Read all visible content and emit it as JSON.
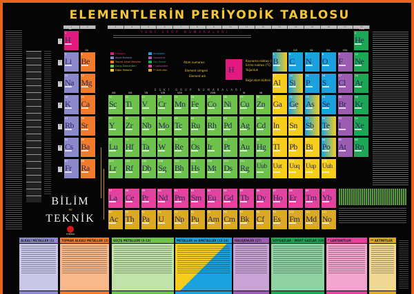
{
  "title": "ELEMENTLERİN PERİYODİK TABLOSU",
  "new_group_header": "YENİ GRUP NUMARALARI",
  "old_group_header": "ESKİ GRUP NUMARALARI",
  "new_groups": [
    "1",
    "2",
    "3",
    "4",
    "5",
    "6",
    "7",
    "8",
    "9",
    "10",
    "11",
    "12",
    "13",
    "14",
    "15",
    "16",
    "17",
    "18"
  ],
  "old_groups": {
    "g1": "IA",
    "g2": "IIA",
    "g13": "IIIA",
    "g14": "IVA",
    "g15": "VA",
    "g16": "VIA",
    "g17": "VIIA",
    "g18": "VIIIA",
    "transition": [
      "IIIB",
      "IVB",
      "VB",
      "VIB",
      "VIIB",
      "VIIIB",
      "IB",
      "IIB"
    ]
  },
  "periods": [
    "1",
    "2",
    "3",
    "4",
    "5",
    "6",
    "7"
  ],
  "colors": {
    "hydrogen": "#e2197e",
    "alkali": "#8c88cc",
    "alkaline": "#f27b2b",
    "transition": "#6dc24b",
    "other": "#f7cd1b",
    "nonmetal": "#1aa2de",
    "metalloid": "linear-gradient(90deg,#1aa2de,#f7cd1b)",
    "halogen": "#9c5cb2",
    "noble": "#1ba753",
    "lanthanide": "#e2439f",
    "actinide": "#dba923",
    "accent": "#f3c63a",
    "border": "#e8641c"
  },
  "legend": [
    {
      "label": "Hidrojen",
      "cat": "hydrogen"
    },
    {
      "label": "Alkali Metaller",
      "cat": "alkali"
    },
    {
      "label": "Toprak Alkali Metaller",
      "cat": "alkaline"
    },
    {
      "label": "Geçiş Elementleri",
      "cat": "transition"
    },
    {
      "label": "Diğer Metaller",
      "cat": "other"
    },
    {
      "label": "Ametaller",
      "cat": "nonmetal"
    },
    {
      "label": "Halojenler",
      "cat": "halogen"
    },
    {
      "label": "Soy Gazlar",
      "cat": "noble"
    },
    {
      "label": "* Lantanitler",
      "cat": "lanthanide"
    },
    {
      "label": "** Aktinitler",
      "cat": "actinide"
    }
  ],
  "key": {
    "symbol": "H",
    "atomic_number": "Atom numarası",
    "element_symbol": "Element simgesi",
    "element_name": "Element adı",
    "boiling": "Kaynama noktası (°C)",
    "melting": "Erime noktası (°C)",
    "density": "Yoğunluk",
    "mass": "Bağıl atom kütlesi"
  },
  "elements": [
    [
      1,
      "H",
      1,
      1,
      "hydrogen"
    ],
    [
      2,
      "He",
      18,
      1,
      "noble"
    ],
    [
      3,
      "Li",
      1,
      2,
      "alkali"
    ],
    [
      4,
      "Be",
      2,
      2,
      "alkaline"
    ],
    [
      5,
      "B",
      13,
      2,
      "metalloid"
    ],
    [
      6,
      "C",
      14,
      2,
      "nonmetal"
    ],
    [
      7,
      "N",
      15,
      2,
      "nonmetal"
    ],
    [
      8,
      "O",
      16,
      2,
      "nonmetal"
    ],
    [
      9,
      "F",
      17,
      2,
      "halogen"
    ],
    [
      10,
      "Ne",
      18,
      2,
      "noble"
    ],
    [
      11,
      "Na",
      1,
      3,
      "alkali"
    ],
    [
      12,
      "Mg",
      2,
      3,
      "alkaline"
    ],
    [
      13,
      "Al",
      13,
      3,
      "other"
    ],
    [
      14,
      "Si",
      14,
      3,
      "metalloid"
    ],
    [
      15,
      "P",
      15,
      3,
      "nonmetal"
    ],
    [
      16,
      "S",
      16,
      3,
      "nonmetal"
    ],
    [
      17,
      "Cl",
      17,
      3,
      "halogen"
    ],
    [
      18,
      "Ar",
      18,
      3,
      "noble"
    ],
    [
      19,
      "K",
      1,
      4,
      "alkali"
    ],
    [
      20,
      "Ca",
      2,
      4,
      "alkaline"
    ],
    [
      21,
      "Sc",
      3,
      4,
      "transition"
    ],
    [
      22,
      "Ti",
      4,
      4,
      "transition"
    ],
    [
      23,
      "V",
      5,
      4,
      "transition"
    ],
    [
      24,
      "Cr",
      6,
      4,
      "transition"
    ],
    [
      25,
      "Mn",
      7,
      4,
      "transition"
    ],
    [
      26,
      "Fe",
      8,
      4,
      "transition"
    ],
    [
      27,
      "Co",
      9,
      4,
      "transition"
    ],
    [
      28,
      "Ni",
      10,
      4,
      "transition"
    ],
    [
      29,
      "Cu",
      11,
      4,
      "transition"
    ],
    [
      30,
      "Zn",
      12,
      4,
      "transition"
    ],
    [
      31,
      "Ga",
      13,
      4,
      "other"
    ],
    [
      32,
      "Ge",
      14,
      4,
      "metalloid"
    ],
    [
      33,
      "As",
      15,
      4,
      "metalloid"
    ],
    [
      34,
      "Se",
      16,
      4,
      "nonmetal"
    ],
    [
      35,
      "Br",
      17,
      4,
      "halogen"
    ],
    [
      36,
      "Kr",
      18,
      4,
      "noble"
    ],
    [
      37,
      "Rb",
      1,
      5,
      "alkali"
    ],
    [
      38,
      "Sr",
      2,
      5,
      "alkaline"
    ],
    [
      39,
      "Y",
      3,
      5,
      "transition"
    ],
    [
      40,
      "Zr",
      4,
      5,
      "transition"
    ],
    [
      41,
      "Nb",
      5,
      5,
      "transition"
    ],
    [
      42,
      "Mo",
      6,
      5,
      "transition"
    ],
    [
      43,
      "Tc",
      7,
      5,
      "transition"
    ],
    [
      44,
      "Ru",
      8,
      5,
      "transition"
    ],
    [
      45,
      "Rh",
      9,
      5,
      "transition"
    ],
    [
      46,
      "Pd",
      10,
      5,
      "transition"
    ],
    [
      47,
      "Ag",
      11,
      5,
      "transition"
    ],
    [
      48,
      "Cd",
      12,
      5,
      "transition"
    ],
    [
      49,
      "In",
      13,
      5,
      "other"
    ],
    [
      50,
      "Sn",
      14,
      5,
      "other"
    ],
    [
      51,
      "Sb",
      15,
      5,
      "metalloid"
    ],
    [
      52,
      "Te",
      16,
      5,
      "metalloid"
    ],
    [
      53,
      "I",
      17,
      5,
      "halogen"
    ],
    [
      54,
      "Xe",
      18,
      5,
      "noble"
    ],
    [
      55,
      "Cs",
      1,
      6,
      "alkali"
    ],
    [
      56,
      "Ba",
      2,
      6,
      "alkaline"
    ],
    [
      71,
      "Lu",
      3,
      6,
      "transition"
    ],
    [
      72,
      "Hf",
      4,
      6,
      "transition"
    ],
    [
      73,
      "Ta",
      5,
      6,
      "transition"
    ],
    [
      74,
      "W",
      6,
      6,
      "transition"
    ],
    [
      75,
      "Re",
      7,
      6,
      "transition"
    ],
    [
      76,
      "Os",
      8,
      6,
      "transition"
    ],
    [
      77,
      "Ir",
      9,
      6,
      "transition"
    ],
    [
      78,
      "Pt",
      10,
      6,
      "transition"
    ],
    [
      79,
      "Au",
      11,
      6,
      "transition"
    ],
    [
      80,
      "Hg",
      12,
      6,
      "transition"
    ],
    [
      81,
      "Tl",
      13,
      6,
      "other"
    ],
    [
      82,
      "Pb",
      14,
      6,
      "other"
    ],
    [
      83,
      "Bi",
      15,
      6,
      "other"
    ],
    [
      84,
      "Po",
      16,
      6,
      "metalloid"
    ],
    [
      85,
      "At",
      17,
      6,
      "halogen"
    ],
    [
      86,
      "Rn",
      18,
      6,
      "noble"
    ],
    [
      87,
      "Fr",
      1,
      7,
      "alkali"
    ],
    [
      88,
      "Ra",
      2,
      7,
      "alkaline"
    ],
    [
      103,
      "Lr",
      3,
      7,
      "transition"
    ],
    [
      104,
      "Rf",
      4,
      7,
      "transition"
    ],
    [
      105,
      "Db",
      5,
      7,
      "transition"
    ],
    [
      106,
      "Sg",
      6,
      7,
      "transition"
    ],
    [
      107,
      "Bh",
      7,
      7,
      "transition"
    ],
    [
      108,
      "Hs",
      8,
      7,
      "transition"
    ],
    [
      109,
      "Mt",
      9,
      7,
      "transition"
    ],
    [
      110,
      "Ds",
      10,
      7,
      "transition"
    ],
    [
      111,
      "Rg",
      11,
      7,
      "transition"
    ],
    [
      112,
      "Uub",
      12,
      7,
      "transition"
    ],
    [
      113,
      "Uut",
      13,
      7,
      "other"
    ],
    [
      114,
      "Uuq",
      14,
      7,
      "other"
    ],
    [
      115,
      "Uup",
      15,
      7,
      "other"
    ],
    [
      116,
      "Uuh",
      16,
      7,
      "other"
    ]
  ],
  "lanthanides": [
    [
      57,
      "La"
    ],
    [
      58,
      "Ce"
    ],
    [
      59,
      "Pr"
    ],
    [
      60,
      "Nd"
    ],
    [
      61,
      "Pm"
    ],
    [
      62,
      "Sm"
    ],
    [
      63,
      "Eu"
    ],
    [
      64,
      "Gd"
    ],
    [
      65,
      "Tb"
    ],
    [
      66,
      "Dy"
    ],
    [
      67,
      "Ho"
    ],
    [
      68,
      "Er"
    ],
    [
      69,
      "Tm"
    ],
    [
      70,
      "Yb"
    ]
  ],
  "actinides": [
    [
      89,
      "Ac"
    ],
    [
      90,
      "Th"
    ],
    [
      91,
      "Pa"
    ],
    [
      92,
      "U"
    ],
    [
      93,
      "Np"
    ],
    [
      94,
      "Pu"
    ],
    [
      95,
      "Am"
    ],
    [
      96,
      "Cm"
    ],
    [
      97,
      "Bk"
    ],
    [
      98,
      "Cf"
    ],
    [
      99,
      "Es"
    ],
    [
      100,
      "Fm"
    ],
    [
      101,
      "Md"
    ],
    [
      102,
      "No"
    ]
  ],
  "logo": {
    "line1": "BİLİM",
    "joiner": "ve",
    "line2": "TEKNİK",
    "publisher": "TÜBİTAK"
  },
  "boxes": [
    {
      "title": "ALKALİ METALLER (1)",
      "cat": "alkali",
      "bg": "#c9c6e8"
    },
    {
      "title": "TOPRAK ALKALİ METALLER (2)",
      "cat": "alkaline",
      "bg": "#f8b98a"
    },
    {
      "title": "GEÇİŞ METALLERİ (3-12)",
      "cat": "transition",
      "bg": "#bfe3a9"
    },
    {
      "title": "METALLER ve AMETALLER (13-16)",
      "cat": "nonmetal",
      "bg": "#1aa2de"
    },
    {
      "title": "HALOJENLER (17)",
      "cat": "halogen",
      "bg": "#c9a3d6"
    },
    {
      "title": "SOYGAZLAR - İNERT GAZLAR (18)",
      "cat": "noble",
      "bg": "#8fd3a3"
    },
    {
      "title": "* LANTANİTLER",
      "cat": "lanthanide",
      "bg": "#f2a6cf"
    },
    {
      "title": "** AKTİNİTLER",
      "cat": "actinide",
      "bg": "#f0d792"
    }
  ]
}
